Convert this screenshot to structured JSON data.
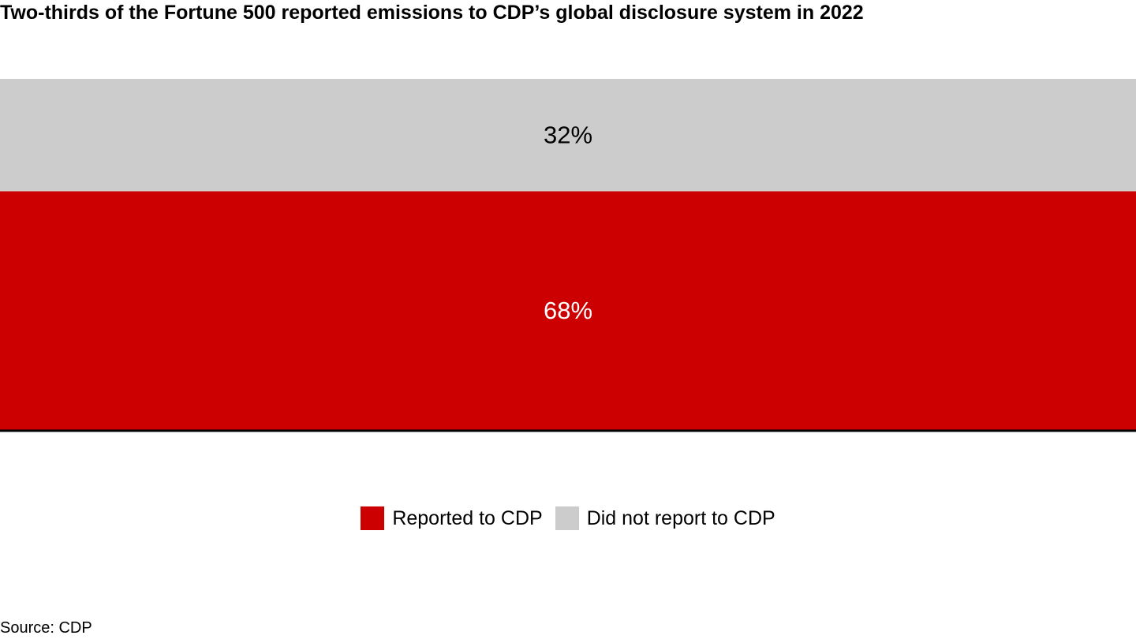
{
  "title": "Two-thirds of the Fortune 500 reported emissions to CDP’s global disclosure system in 2022",
  "source": "Source: CDP",
  "chart_data": {
    "type": "bar",
    "orientation": "stacked-100",
    "title": "Two-thirds of the Fortune 500 reported emissions to CDP’s global disclosure system in 2022",
    "categories": [
      ""
    ],
    "series": [
      {
        "name": "Reported to CDP",
        "values": [
          68
        ],
        "label": "68%",
        "color": "#cc0000",
        "label_color": "#ffffff"
      },
      {
        "name": "Did not report to CDP",
        "values": [
          32
        ],
        "label": "32%",
        "color": "#cccccc",
        "label_color": "#000000"
      }
    ],
    "ylim": [
      0,
      100
    ],
    "grid": false,
    "legend_position": "bottom-center"
  },
  "legend": [
    {
      "label": "Reported to CDP",
      "color": "#cc0000"
    },
    {
      "label": "Did not report to CDP",
      "color": "#cccccc"
    }
  ]
}
